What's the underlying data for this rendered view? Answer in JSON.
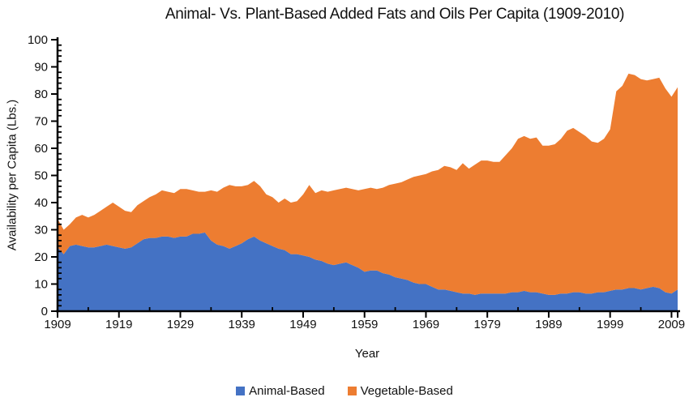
{
  "title": "Animal- Vs. Plant-Based Added Fats and Oils Per Capita (1909-2010)",
  "y_axis": {
    "label": "Availability per Capita (Lbs.)",
    "min": 0,
    "max": 100,
    "major_step": 10,
    "minor_step": 2,
    "ticks": [
      {
        "value": 0,
        "label": "0"
      },
      {
        "value": 10,
        "label": "10"
      },
      {
        "value": 20,
        "label": "20"
      },
      {
        "value": 30,
        "label": "30"
      },
      {
        "value": 40,
        "label": "40"
      },
      {
        "value": 50,
        "label": "50"
      },
      {
        "value": 60,
        "label": "60"
      },
      {
        "value": 70,
        "label": "70"
      },
      {
        "value": 80,
        "label": "80"
      },
      {
        "value": 90,
        "label": "90"
      },
      {
        "value": 100,
        "label": "100"
      }
    ]
  },
  "x_axis": {
    "label": "Year",
    "ticks": [
      {
        "value": 1909,
        "label": "1909"
      },
      {
        "value": 1919,
        "label": "1919"
      },
      {
        "value": 1929,
        "label": "1929"
      },
      {
        "value": 1939,
        "label": "1939"
      },
      {
        "value": 1949,
        "label": "1949"
      },
      {
        "value": 1959,
        "label": "1959"
      },
      {
        "value": 1969,
        "label": "1969"
      },
      {
        "value": 1979,
        "label": "1979"
      },
      {
        "value": 1989,
        "label": "1989"
      },
      {
        "value": 1999,
        "label": "1999"
      },
      {
        "value": 2009,
        "label": "2009"
      }
    ],
    "minor_tick_years": [
      1914,
      1924,
      1934,
      1944,
      1954,
      1964,
      1974,
      1984,
      1994,
      2004
    ],
    "end_tick_year": 2010
  },
  "legend": [
    {
      "label": "Animal-Based",
      "color": "#4472C4"
    },
    {
      "label": "Vegetable-Based",
      "color": "#ED7D31"
    }
  ],
  "chart_data": {
    "type": "area",
    "stacked": true,
    "title": "Animal- Vs. Plant-Based Added Fats and Oils Per Capita (1909-2010)",
    "xlabel": "Year",
    "ylabel": "Availability per Capita (Lbs.)",
    "xlim": [
      1909,
      2010
    ],
    "ylim": [
      0,
      100
    ],
    "grid": false,
    "legend_position": "bottom",
    "x": [
      1909,
      1910,
      1911,
      1912,
      1913,
      1914,
      1915,
      1916,
      1917,
      1918,
      1919,
      1920,
      1921,
      1922,
      1923,
      1924,
      1925,
      1926,
      1927,
      1928,
      1929,
      1930,
      1931,
      1932,
      1933,
      1934,
      1935,
      1936,
      1937,
      1938,
      1939,
      1940,
      1941,
      1942,
      1943,
      1944,
      1945,
      1946,
      1947,
      1948,
      1949,
      1950,
      1951,
      1952,
      1953,
      1954,
      1955,
      1956,
      1957,
      1958,
      1959,
      1960,
      1961,
      1962,
      1963,
      1964,
      1965,
      1966,
      1967,
      1968,
      1969,
      1970,
      1971,
      1972,
      1973,
      1974,
      1975,
      1976,
      1977,
      1978,
      1979,
      1980,
      1981,
      1982,
      1983,
      1984,
      1985,
      1986,
      1987,
      1988,
      1989,
      1990,
      1991,
      1992,
      1993,
      1994,
      1995,
      1996,
      1997,
      1998,
      1999,
      2000,
      2001,
      2002,
      2003,
      2004,
      2005,
      2006,
      2007,
      2008,
      2009,
      2010
    ],
    "series": [
      {
        "name": "Animal-Based",
        "color": "#4472C4",
        "values": [
          23.5,
          21,
          24,
          24.5,
          24,
          23.5,
          23.5,
          24,
          24.5,
          24,
          23.5,
          23,
          23.5,
          25,
          26.5,
          27,
          27,
          27.5,
          27.5,
          27,
          27.5,
          27.5,
          28.5,
          28.5,
          29,
          26,
          24.5,
          24,
          23,
          24,
          25,
          26.5,
          27.5,
          26,
          25,
          24,
          23,
          22.5,
          21,
          21,
          20.5,
          20,
          19,
          18.5,
          17.5,
          17,
          17.5,
          18,
          17,
          16,
          14.5,
          15,
          15,
          14,
          13.5,
          12.5,
          12,
          11.5,
          10.5,
          10,
          10,
          9,
          8,
          8,
          7.5,
          7,
          6.5,
          6.5,
          6,
          6.5,
          6.5,
          6.5,
          6.5,
          6.5,
          7,
          7,
          7.5,
          7,
          7,
          6.5,
          6,
          6,
          6.5,
          6.5,
          7,
          7,
          6.5,
          6.5,
          7,
          7,
          7.5,
          8,
          8,
          8.5,
          8.5,
          8,
          8.5,
          9,
          8.5,
          7,
          6.5,
          8
        ]
      },
      {
        "name": "Vegetable-Based",
        "color": "#ED7D31",
        "values": [
          10.5,
          9,
          8,
          10,
          11.5,
          11,
          12,
          13,
          14,
          16,
          15,
          14,
          13,
          14,
          14,
          15,
          16,
          17,
          16.5,
          16.5,
          17.5,
          17.5,
          16,
          15.5,
          15,
          18.5,
          19.5,
          21.5,
          23.5,
          22,
          21,
          20,
          20.5,
          20,
          18,
          18,
          17,
          19,
          19,
          19.5,
          22.5,
          26.5,
          24.5,
          26,
          26.5,
          27.5,
          27.5,
          27.5,
          28,
          28.5,
          30.5,
          30.5,
          30,
          31.5,
          33,
          34.5,
          35.5,
          37,
          39,
          40,
          40.5,
          42.5,
          44,
          45.5,
          45.5,
          45,
          48,
          46,
          48,
          49,
          49,
          48.5,
          48.5,
          51,
          53,
          56.5,
          57,
          56.5,
          57,
          54.5,
          55,
          55.5,
          57,
          60,
          60.5,
          59,
          58,
          56,
          55,
          56.5,
          59.5,
          73,
          75,
          79,
          78.5,
          77.5,
          76.5,
          76.5,
          77.5,
          75,
          72.5,
          74.5
        ]
      }
    ]
  }
}
